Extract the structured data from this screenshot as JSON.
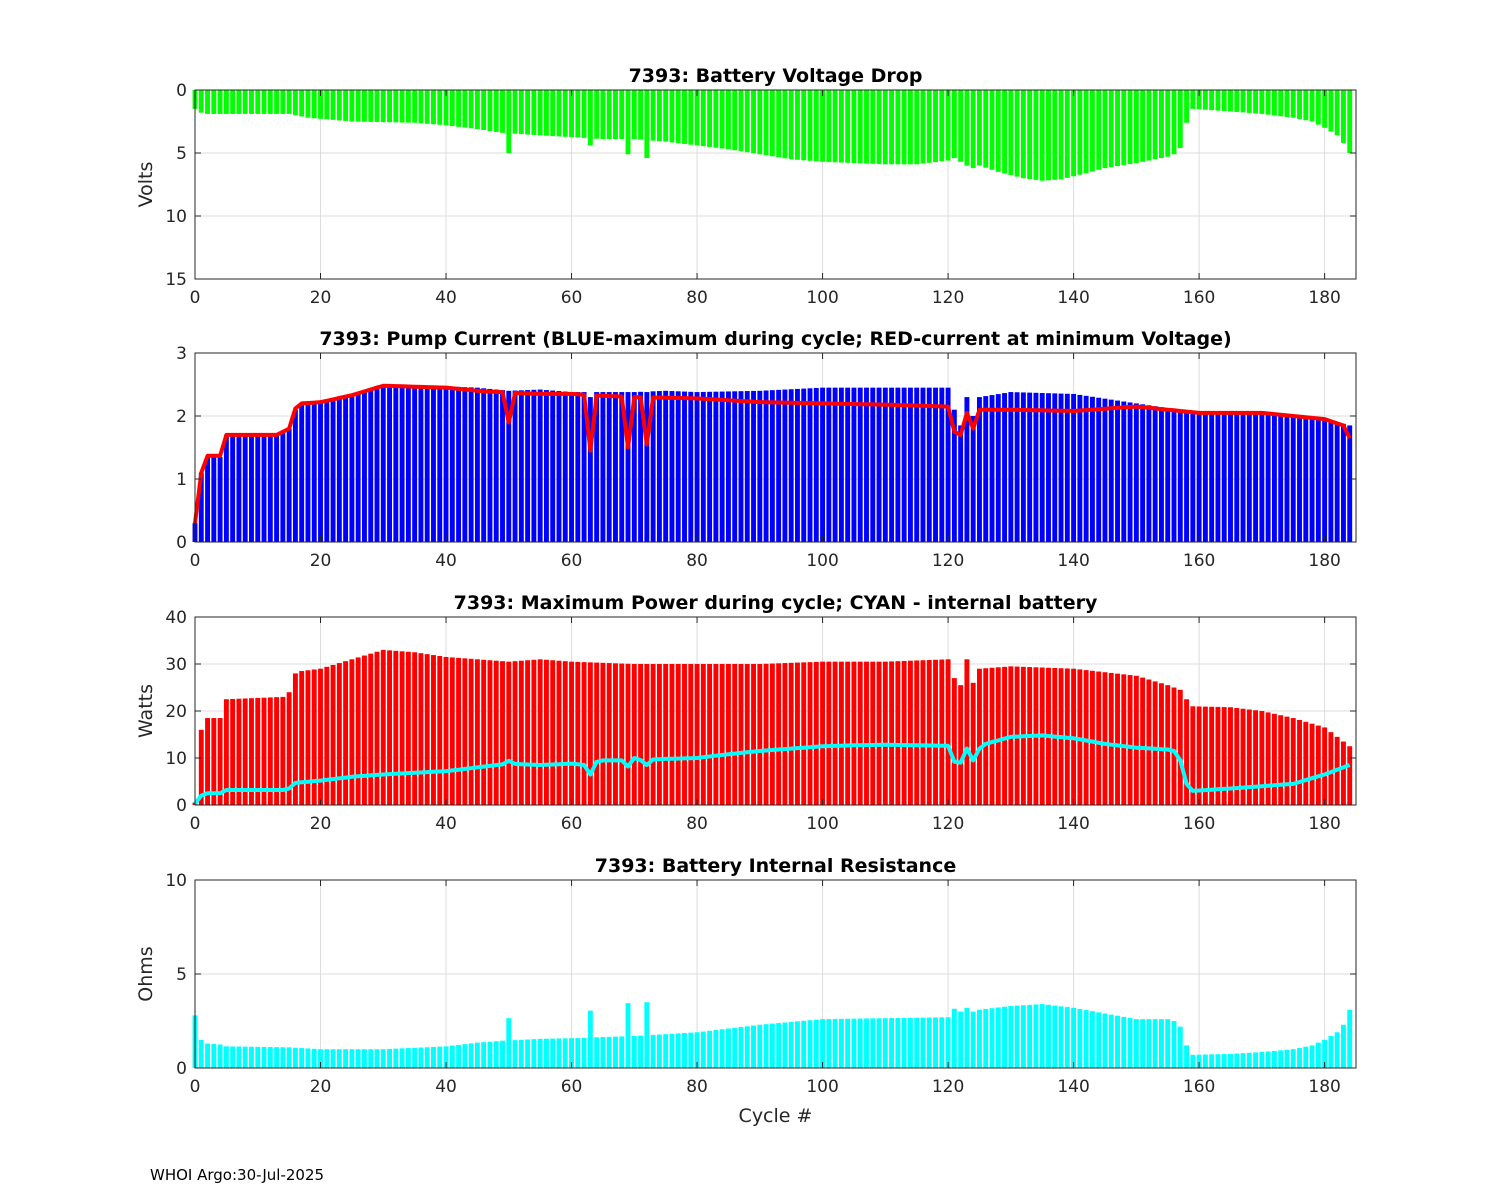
{
  "footer": "WHOI Argo:30-Jul-2025",
  "xlabel": "Cycle #",
  "chart_data": [
    {
      "type": "bar",
      "title": "7393: Battery Voltage Drop",
      "ylabel": "Volts",
      "xlim": [
        0,
        185
      ],
      "ylim": [
        0,
        15
      ],
      "y_reversed": true,
      "xticks": [
        0,
        20,
        40,
        60,
        80,
        100,
        120,
        140,
        160,
        180
      ],
      "yticks": [
        0,
        5,
        10,
        15
      ],
      "grid": true,
      "bar_color": "#00ff00",
      "anchors": [
        [
          0,
          1.5
        ],
        [
          1,
          1.8
        ],
        [
          2,
          1.9
        ],
        [
          5,
          1.9
        ],
        [
          15,
          1.9
        ],
        [
          18,
          2.2
        ],
        [
          25,
          2.5
        ],
        [
          35,
          2.6
        ],
        [
          40,
          2.8
        ],
        [
          45,
          3.1
        ],
        [
          49,
          3.4
        ],
        [
          55,
          3.6
        ],
        [
          62,
          3.8
        ],
        [
          65,
          3.9
        ],
        [
          70,
          3.9
        ],
        [
          75,
          4.1
        ],
        [
          80,
          4.4
        ],
        [
          85,
          4.7
        ],
        [
          90,
          5.1
        ],
        [
          95,
          5.5
        ],
        [
          100,
          5.7
        ],
        [
          105,
          5.8
        ],
        [
          110,
          5.9
        ],
        [
          115,
          5.9
        ],
        [
          120,
          5.6
        ],
        [
          125,
          6.0
        ],
        [
          128,
          6.5
        ],
        [
          132,
          7.0
        ],
        [
          135,
          7.2
        ],
        [
          138,
          7.1
        ],
        [
          142,
          6.6
        ],
        [
          145,
          6.2
        ],
        [
          150,
          5.8
        ],
        [
          155,
          5.3
        ],
        [
          156,
          5.1
        ],
        [
          157,
          4.6
        ],
        [
          158,
          2.6
        ],
        [
          159,
          1.5
        ],
        [
          165,
          1.7
        ],
        [
          170,
          1.9
        ],
        [
          175,
          2.2
        ],
        [
          178,
          2.5
        ],
        [
          180,
          3.0
        ],
        [
          182,
          3.6
        ],
        [
          183,
          4.2
        ],
        [
          184,
          5.0
        ]
      ],
      "spikes": {
        "50": 5.0,
        "63": 4.4,
        "69": 5.1,
        "72": 5.4,
        "121": 5.4,
        "122": 5.7,
        "123": 6.0,
        "124": 6.2
      }
    },
    {
      "type": "bar+line",
      "title": "7393: Pump Current (BLUE-maximum during cycle; RED-current at minimum Voltage)",
      "ylabel": "",
      "xlim": [
        0,
        185
      ],
      "ylim": [
        0,
        3
      ],
      "xticks": [
        0,
        20,
        40,
        60,
        80,
        100,
        120,
        140,
        160,
        180
      ],
      "yticks": [
        0,
        1,
        2,
        3
      ],
      "grid": true,
      "bar_color": "#0000ff",
      "line_color": "#ff0000",
      "bar_anchors": [
        [
          0,
          0.3
        ],
        [
          1,
          1.1
        ],
        [
          2,
          1.35
        ],
        [
          4,
          1.35
        ],
        [
          5,
          1.7
        ],
        [
          13,
          1.7
        ],
        [
          15,
          1.8
        ],
        [
          16,
          2.1
        ],
        [
          17,
          2.2
        ],
        [
          20,
          2.22
        ],
        [
          25,
          2.35
        ],
        [
          30,
          2.5
        ],
        [
          40,
          2.47
        ],
        [
          45,
          2.45
        ],
        [
          50,
          2.4
        ],
        [
          55,
          2.42
        ],
        [
          60,
          2.38
        ],
        [
          65,
          2.38
        ],
        [
          70,
          2.38
        ],
        [
          75,
          2.4
        ],
        [
          80,
          2.38
        ],
        [
          90,
          2.4
        ],
        [
          100,
          2.45
        ],
        [
          110,
          2.45
        ],
        [
          120,
          2.45
        ],
        [
          121,
          2.1
        ],
        [
          125,
          2.3
        ],
        [
          130,
          2.38
        ],
        [
          140,
          2.35
        ],
        [
          150,
          2.2
        ],
        [
          160,
          2.05
        ],
        [
          170,
          2.05
        ],
        [
          180,
          1.95
        ],
        [
          184,
          1.85
        ]
      ],
      "bar_spikes": {
        "63": 2.3,
        "69": 2.38,
        "72": 2.38,
        "121": 2.1,
        "122": 1.85,
        "123": 2.3,
        "124": 2.0
      },
      "line_anchors": [
        [
          0,
          0.3
        ],
        [
          1,
          1.1
        ],
        [
          2,
          1.37
        ],
        [
          4,
          1.37
        ],
        [
          5,
          1.7
        ],
        [
          13,
          1.7
        ],
        [
          15,
          1.8
        ],
        [
          16,
          2.12
        ],
        [
          17,
          2.2
        ],
        [
          20,
          2.22
        ],
        [
          25,
          2.33
        ],
        [
          30,
          2.48
        ],
        [
          40,
          2.45
        ],
        [
          45,
          2.4
        ],
        [
          50,
          2.37
        ],
        [
          55,
          2.35
        ],
        [
          60,
          2.35
        ],
        [
          65,
          2.32
        ],
        [
          70,
          2.3
        ],
        [
          80,
          2.28
        ],
        [
          90,
          2.22
        ],
        [
          100,
          2.2
        ],
        [
          110,
          2.18
        ],
        [
          120,
          2.15
        ],
        [
          121,
          1.85
        ],
        [
          125,
          2.1
        ],
        [
          130,
          2.1
        ],
        [
          140,
          2.08
        ],
        [
          150,
          2.15
        ],
        [
          160,
          2.05
        ],
        [
          170,
          2.05
        ],
        [
          180,
          1.95
        ],
        [
          183,
          1.85
        ],
        [
          184,
          1.65
        ]
      ],
      "line_spikes": {
        "50": 1.9,
        "63": 1.45,
        "69": 1.5,
        "72": 1.55,
        "121": 1.75,
        "122": 1.7,
        "123": 2.05,
        "124": 1.8
      }
    },
    {
      "type": "bar+line",
      "title": "7393: Maximum Power during cycle; CYAN - internal battery",
      "ylabel": "Watts",
      "xlim": [
        0,
        185
      ],
      "ylim": [
        0,
        40
      ],
      "xticks": [
        0,
        20,
        40,
        60,
        80,
        100,
        120,
        140,
        160,
        180
      ],
      "yticks": [
        0,
        10,
        20,
        30,
        40
      ],
      "grid": true,
      "bar_color": "#ff0000",
      "line_color": "#00ffff",
      "bar_anchors": [
        [
          0,
          0.5
        ],
        [
          1,
          16
        ],
        [
          2,
          18.5
        ],
        [
          4,
          18.5
        ],
        [
          5,
          22.5
        ],
        [
          14,
          23
        ],
        [
          15,
          24
        ],
        [
          16,
          28
        ],
        [
          17,
          28.5
        ],
        [
          20,
          29
        ],
        [
          25,
          31
        ],
        [
          30,
          33
        ],
        [
          35,
          32.5
        ],
        [
          40,
          31.5
        ],
        [
          45,
          31
        ],
        [
          50,
          30.5
        ],
        [
          55,
          31
        ],
        [
          60,
          30.5
        ],
        [
          70,
          30
        ],
        [
          80,
          30
        ],
        [
          90,
          30
        ],
        [
          100,
          30.5
        ],
        [
          110,
          30.5
        ],
        [
          120,
          31
        ],
        [
          121,
          26.5
        ],
        [
          125,
          29
        ],
        [
          130,
          29.5
        ],
        [
          140,
          29
        ],
        [
          150,
          27.5
        ],
        [
          155,
          25.5
        ],
        [
          157,
          24.5
        ],
        [
          158,
          22.5
        ],
        [
          159,
          21
        ],
        [
          165,
          20.8
        ],
        [
          170,
          20
        ],
        [
          175,
          18.5
        ],
        [
          180,
          16.5
        ],
        [
          184,
          12.5
        ]
      ],
      "bar_spikes": {
        "121": 27,
        "122": 25.5,
        "123": 31,
        "124": 26
      },
      "line_anchors": [
        [
          0,
          0.3
        ],
        [
          1,
          2
        ],
        [
          2,
          2.5
        ],
        [
          4,
          2.5
        ],
        [
          5,
          3.2
        ],
        [
          14,
          3.2
        ],
        [
          15,
          3.5
        ],
        [
          16,
          4.7
        ],
        [
          20,
          5.2
        ],
        [
          25,
          6
        ],
        [
          30,
          6.5
        ],
        [
          40,
          7.2
        ],
        [
          45,
          8
        ],
        [
          50,
          8.8
        ],
        [
          55,
          8.5
        ],
        [
          60,
          8.8
        ],
        [
          62,
          8.5
        ],
        [
          65,
          9.5
        ],
        [
          70,
          9.5
        ],
        [
          75,
          9.8
        ],
        [
          80,
          10
        ],
        [
          85,
          10.8
        ],
        [
          90,
          11.5
        ],
        [
          95,
          12
        ],
        [
          100,
          12.5
        ],
        [
          105,
          12.7
        ],
        [
          110,
          12.8
        ],
        [
          120,
          12.6
        ],
        [
          121,
          9.5
        ],
        [
          122,
          9
        ],
        [
          126,
          13
        ],
        [
          130,
          14.5
        ],
        [
          135,
          14.8
        ],
        [
          140,
          14.2
        ],
        [
          145,
          13
        ],
        [
          150,
          12.2
        ],
        [
          155,
          11.8
        ],
        [
          156,
          11.5
        ],
        [
          157,
          9.5
        ],
        [
          158,
          4.5
        ],
        [
          159,
          3
        ],
        [
          165,
          3.5
        ],
        [
          170,
          4
        ],
        [
          175,
          4.5
        ],
        [
          180,
          6.5
        ],
        [
          184,
          8.5
        ]
      ],
      "line_spikes": {
        "50": 9.4,
        "63": 6.5,
        "69": 8.2,
        "70": 10,
        "72": 8.5,
        "121": 9.2,
        "122": 9,
        "123": 12,
        "124": 9.5
      }
    },
    {
      "type": "bar",
      "title": "7393: Battery Internal Resistance",
      "ylabel": "Ohms",
      "xlim": [
        0,
        185
      ],
      "ylim": [
        0,
        10
      ],
      "xticks": [
        0,
        20,
        40,
        60,
        80,
        100,
        120,
        140,
        160,
        180
      ],
      "yticks": [
        0,
        5,
        10
      ],
      "grid": true,
      "bar_color": "#00ffff",
      "anchors": [
        [
          0,
          2.8
        ],
        [
          1,
          1.5
        ],
        [
          2,
          1.3
        ],
        [
          4,
          1.25
        ],
        [
          5,
          1.15
        ],
        [
          15,
          1.1
        ],
        [
          20,
          1.0
        ],
        [
          30,
          1.0
        ],
        [
          40,
          1.15
        ],
        [
          45,
          1.35
        ],
        [
          49,
          1.45
        ],
        [
          55,
          1.55
        ],
        [
          62,
          1.6
        ],
        [
          65,
          1.65
        ],
        [
          70,
          1.7
        ],
        [
          75,
          1.8
        ],
        [
          80,
          1.9
        ],
        [
          85,
          2.1
        ],
        [
          90,
          2.3
        ],
        [
          95,
          2.45
        ],
        [
          100,
          2.6
        ],
        [
          110,
          2.65
        ],
        [
          120,
          2.7
        ],
        [
          121,
          3.1
        ],
        [
          125,
          3.1
        ],
        [
          130,
          3.3
        ],
        [
          135,
          3.4
        ],
        [
          140,
          3.2
        ],
        [
          145,
          2.9
        ],
        [
          150,
          2.6
        ],
        [
          155,
          2.6
        ],
        [
          156,
          2.5
        ],
        [
          157,
          2.2
        ],
        [
          158,
          1.2
        ],
        [
          159,
          0.7
        ],
        [
          165,
          0.75
        ],
        [
          170,
          0.85
        ],
        [
          175,
          1.0
        ],
        [
          178,
          1.2
        ],
        [
          180,
          1.5
        ],
        [
          182,
          1.9
        ],
        [
          183,
          2.3
        ],
        [
          184,
          3.1
        ]
      ],
      "spikes": {
        "50": 2.65,
        "63": 3.05,
        "69": 3.45,
        "72": 3.5,
        "121": 3.15,
        "122": 3.0,
        "123": 3.2,
        "124": 3.0
      }
    }
  ]
}
